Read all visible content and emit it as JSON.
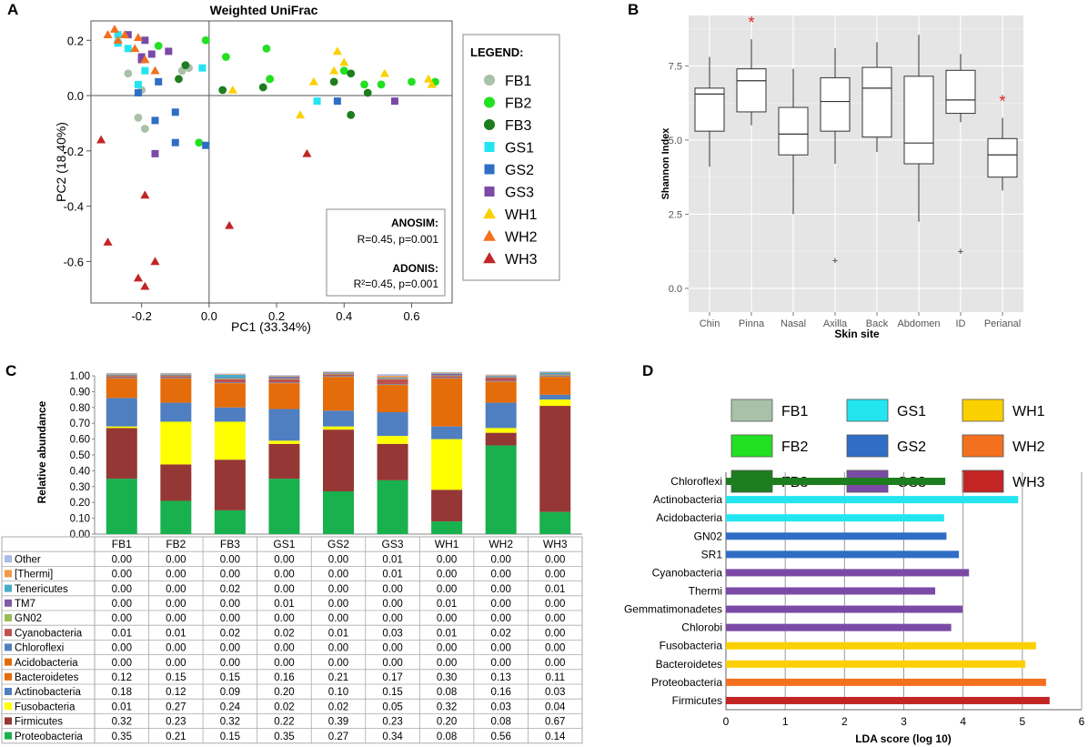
{
  "panel_labels": [
    "A",
    "B",
    "C",
    "D"
  ],
  "colors": {
    "FB1": "#a9c0a9",
    "FB2": "#22e022",
    "FB3": "#1e7d1e",
    "GS1": "#22e5f0",
    "GS2": "#2f6ec4",
    "GS3": "#7b4aa6",
    "WH1": "#fbd000",
    "WH2": "#f3701e",
    "WH3": "#c32424"
  },
  "panel_a": {
    "title": "Weighted UniFrac",
    "legend_title": "LEGEND:",
    "anosim_title": "ANOSIM:",
    "anosim_value": "R=0.45, p=0.001",
    "adonis_title": "ADONIS:",
    "adonis_value": "R²=0.45, p=0.001"
  },
  "panel_c": {
    "table_title": "Relative abundance",
    "legend_colors": {
      "Other": "#a9bde8",
      "[Thermi]": "#f2994a",
      "Tenericutes": "#4aacc6",
      "TM7": "#7d5ba6",
      "GN02": "#9bbb59",
      "Cyanobacteria": "#c0504d",
      "Chloroflexi": "#4f81bd",
      "Acidobacteria": "#e36c0a",
      "Bacteroidetes": "#e46c0a",
      "Actinobacteria": "#4f7fc0",
      "Fusobacteria": "#ffff00",
      "Firmicutes": "#953735",
      "Proteobacteria": "#19b04e"
    }
  },
  "chart_data": [
    {
      "type": "scatter",
      "title": "Weighted UniFrac",
      "xlabel": "PC1 (33.34%)",
      "ylabel": "PC2 (18.40%)",
      "xlim": [
        -0.35,
        0.72
      ],
      "ylim": [
        -0.75,
        0.27
      ],
      "xticks": [
        "-0.2",
        "0.0",
        "0.2",
        "0.4",
        "0.6"
      ],
      "yticks": [
        "0.2",
        "0.0",
        "-0.2",
        "-0.4",
        "-0.6"
      ],
      "legend": [
        "FB1",
        "FB2",
        "FB3",
        "GS1",
        "GS2",
        "GS3",
        "WH1",
        "WH2",
        "WH3"
      ],
      "series": [
        {
          "name": "FB1",
          "marker": "circle",
          "points": [
            [
              -0.24,
              0.08
            ],
            [
              -0.2,
              0.02
            ],
            [
              -0.08,
              0.09
            ],
            [
              -0.06,
              0.1
            ],
            [
              -0.21,
              -0.08
            ],
            [
              -0.19,
              -0.12
            ]
          ]
        },
        {
          "name": "FB2",
          "marker": "circle",
          "points": [
            [
              -0.15,
              0.18
            ],
            [
              -0.01,
              0.2
            ],
            [
              0.05,
              0.14
            ],
            [
              0.17,
              0.17
            ],
            [
              0.18,
              0.06
            ],
            [
              0.4,
              0.09
            ],
            [
              0.46,
              0.04
            ],
            [
              0.51,
              0.04
            ],
            [
              -0.03,
              -0.17
            ],
            [
              0.6,
              0.05
            ],
            [
              0.67,
              0.05
            ],
            [
              0.18,
              0.06
            ]
          ]
        },
        {
          "name": "FB3",
          "marker": "circle",
          "points": [
            [
              -0.07,
              0.11
            ],
            [
              -0.09,
              0.06
            ],
            [
              0.04,
              0.02
            ],
            [
              0.16,
              0.03
            ],
            [
              0.37,
              0.05
            ],
            [
              0.42,
              0.08
            ],
            [
              0.47,
              0.01
            ],
            [
              0.42,
              -0.07
            ]
          ]
        },
        {
          "name": "GS1",
          "marker": "square",
          "points": [
            [
              -0.27,
              0.22
            ],
            [
              -0.24,
              0.17
            ],
            [
              -0.27,
              0.19
            ],
            [
              -0.19,
              0.09
            ],
            [
              -0.02,
              0.1
            ],
            [
              -0.21,
              0.04
            ],
            [
              0.32,
              -0.02
            ]
          ]
        },
        {
          "name": "GS2",
          "marker": "square",
          "points": [
            [
              -0.21,
              0.01
            ],
            [
              -0.15,
              0.05
            ],
            [
              -0.16,
              -0.09
            ],
            [
              -0.1,
              -0.06
            ],
            [
              -0.1,
              -0.17
            ],
            [
              -0.01,
              -0.18
            ],
            [
              0.38,
              -0.02
            ]
          ]
        },
        {
          "name": "GS3",
          "marker": "square",
          "points": [
            [
              -0.24,
              0.22
            ],
            [
              -0.19,
              0.2
            ],
            [
              -0.17,
              0.15
            ],
            [
              -0.12,
              0.16
            ],
            [
              -0.2,
              0.13
            ],
            [
              -0.2,
              0.14
            ],
            [
              -0.16,
              -0.21
            ],
            [
              0.55,
              -0.02
            ]
          ]
        },
        {
          "name": "WH1",
          "marker": "triangle",
          "points": [
            [
              0.31,
              0.05
            ],
            [
              0.38,
              0.16
            ],
            [
              0.4,
              0.12
            ],
            [
              0.37,
              0.09
            ],
            [
              0.52,
              0.08
            ],
            [
              0.65,
              0.06
            ],
            [
              0.66,
              0.04
            ],
            [
              0.27,
              -0.07
            ],
            [
              0.07,
              0.02
            ]
          ]
        },
        {
          "name": "WH2",
          "marker": "triangle",
          "points": [
            [
              -0.3,
              0.22
            ],
            [
              -0.28,
              0.24
            ],
            [
              -0.27,
              0.2
            ],
            [
              -0.25,
              0.22
            ],
            [
              -0.22,
              0.17
            ],
            [
              -0.19,
              0.13
            ],
            [
              -0.16,
              0.09
            ],
            [
              -0.21,
              0.21
            ]
          ]
        },
        {
          "name": "WH3",
          "marker": "triangle",
          "points": [
            [
              -0.32,
              -0.16
            ],
            [
              -0.3,
              -0.53
            ],
            [
              -0.19,
              -0.36
            ],
            [
              -0.16,
              -0.6
            ],
            [
              -0.21,
              -0.66
            ],
            [
              -0.19,
              -0.69
            ],
            [
              0.06,
              -0.47
            ],
            [
              0.29,
              -0.21
            ]
          ]
        }
      ]
    },
    {
      "type": "box",
      "xlabel": "Skin site",
      "ylabel": "Shannon Index",
      "ylim": [
        -0.8,
        9.2
      ],
      "yticks": [
        "0.0",
        "2.5",
        "5.0",
        "7.5"
      ],
      "categories": [
        "Chin",
        "Pinna",
        "Nasal",
        "Axilla",
        "Back",
        "Abdomen",
        "ID",
        "Perianal"
      ],
      "boxes": [
        {
          "min": 4.1,
          "q1": 5.3,
          "median": 6.55,
          "q3": 6.75,
          "max": 7.8,
          "outliers": [],
          "star": false
        },
        {
          "min": 5.5,
          "q1": 5.95,
          "median": 7.0,
          "q3": 7.4,
          "max": 8.4,
          "outliers": [],
          "star": true
        },
        {
          "min": 2.5,
          "q1": 4.5,
          "median": 5.2,
          "q3": 6.1,
          "max": 7.4,
          "outliers": [],
          "star": false
        },
        {
          "min": 4.2,
          "q1": 5.3,
          "median": 6.3,
          "q3": 7.1,
          "max": 8.1,
          "outliers": [
            0.95
          ],
          "star": false
        },
        {
          "min": 4.6,
          "q1": 5.1,
          "median": 6.75,
          "q3": 7.45,
          "max": 8.3,
          "outliers": [],
          "star": false
        },
        {
          "min": 2.25,
          "q1": 4.2,
          "median": 4.9,
          "q3": 7.15,
          "max": 8.55,
          "outliers": [],
          "star": false
        },
        {
          "min": 5.6,
          "q1": 5.9,
          "median": 6.35,
          "q3": 7.35,
          "max": 7.9,
          "outliers": [
            1.25
          ],
          "star": false
        },
        {
          "min": 3.3,
          "q1": 3.75,
          "median": 4.5,
          "q3": 5.05,
          "max": 5.75,
          "outliers": [],
          "star": true
        }
      ]
    },
    {
      "type": "stacked_bar",
      "ylabel": "Relative abundance",
      "ylim": [
        0,
        1
      ],
      "yticks": [
        "0.00",
        "0.10",
        "0.20",
        "0.30",
        "0.40",
        "0.50",
        "0.60",
        "0.70",
        "0.80",
        "0.90",
        "1.00"
      ],
      "categories": [
        "FB1",
        "FB2",
        "FB3",
        "GS1",
        "GS2",
        "GS3",
        "WH1",
        "WH2",
        "WH3"
      ],
      "series": [
        {
          "name": "Other",
          "values": [
            "0.00",
            "0.00",
            "0.00",
            "0.00",
            "0.00",
            "0.01",
            "0.00",
            "0.00",
            "0.00"
          ]
        },
        {
          "name": "[Thermi]",
          "values": [
            "0.00",
            "0.00",
            "0.00",
            "0.00",
            "0.00",
            "0.01",
            "0.00",
            "0.00",
            "0.00"
          ]
        },
        {
          "name": "Tenericutes",
          "values": [
            "0.00",
            "0.00",
            "0.02",
            "0.00",
            "0.00",
            "0.00",
            "0.00",
            "0.00",
            "0.01"
          ]
        },
        {
          "name": "TM7",
          "values": [
            "0.00",
            "0.00",
            "0.00",
            "0.01",
            "0.00",
            "0.00",
            "0.01",
            "0.00",
            "0.00"
          ]
        },
        {
          "name": "GN02",
          "values": [
            "0.00",
            "0.00",
            "0.00",
            "0.00",
            "0.00",
            "0.00",
            "0.00",
            "0.00",
            "0.00"
          ]
        },
        {
          "name": "Cyanobacteria",
          "values": [
            "0.01",
            "0.01",
            "0.02",
            "0.02",
            "0.01",
            "0.03",
            "0.01",
            "0.02",
            "0.00"
          ]
        },
        {
          "name": "Chloroflexi",
          "values": [
            "0.00",
            "0.00",
            "0.00",
            "0.00",
            "0.00",
            "0.00",
            "0.00",
            "0.00",
            "0.00"
          ]
        },
        {
          "name": "Acidobacteria",
          "values": [
            "0.00",
            "0.00",
            "0.00",
            "0.00",
            "0.00",
            "0.00",
            "0.00",
            "0.00",
            "0.00"
          ]
        },
        {
          "name": "Bacteroidetes",
          "values": [
            "0.12",
            "0.15",
            "0.15",
            "0.16",
            "0.21",
            "0.17",
            "0.30",
            "0.13",
            "0.11"
          ]
        },
        {
          "name": "Actinobacteria",
          "values": [
            "0.18",
            "0.12",
            "0.09",
            "0.20",
            "0.10",
            "0.15",
            "0.08",
            "0.16",
            "0.03"
          ]
        },
        {
          "name": "Fusobacteria",
          "values": [
            "0.01",
            "0.27",
            "0.24",
            "0.02",
            "0.02",
            "0.05",
            "0.32",
            "0.03",
            "0.04"
          ]
        },
        {
          "name": "Firmicutes",
          "values": [
            "0.32",
            "0.23",
            "0.32",
            "0.22",
            "0.39",
            "0.23",
            "0.20",
            "0.08",
            "0.67"
          ]
        },
        {
          "name": "Proteobacteria",
          "values": [
            "0.35",
            "0.21",
            "0.15",
            "0.35",
            "0.27",
            "0.34",
            "0.08",
            "0.56",
            "0.14"
          ]
        }
      ]
    },
    {
      "type": "bar_horizontal",
      "xlabel": "LDA score (log 10)",
      "xlim": [
        0,
        6
      ],
      "xticks": [
        "0",
        "1",
        "2",
        "3",
        "4",
        "5",
        "6"
      ],
      "legend": [
        "FB1",
        "GS1",
        "WH1",
        "FB2",
        "GS2",
        "WH2",
        "FB3",
        "GS3",
        "WH3"
      ],
      "bars": [
        {
          "label": "Chloroflexi",
          "value": 3.7,
          "group": "FB3"
        },
        {
          "label": "Actinobacteria",
          "value": 4.93,
          "group": "GS1"
        },
        {
          "label": "Acidobacteria",
          "value": 3.68,
          "group": "GS1"
        },
        {
          "label": "GN02",
          "value": 3.72,
          "group": "GS2"
        },
        {
          "label": "SR1",
          "value": 3.93,
          "group": "GS2"
        },
        {
          "label": "Cyanobacteria",
          "value": 4.1,
          "group": "GS3"
        },
        {
          "label": "Thermi",
          "value": 3.53,
          "group": "GS3"
        },
        {
          "label": "Gemmatimonadetes",
          "value": 3.99,
          "group": "GS3"
        },
        {
          "label": "Chlorobi",
          "value": 3.8,
          "group": "GS3"
        },
        {
          "label": "Fusobacteria",
          "value": 5.23,
          "group": "WH1"
        },
        {
          "label": "Bacteroidetes",
          "value": 5.05,
          "group": "WH1"
        },
        {
          "label": "Proteobacteria",
          "value": 5.4,
          "group": "WH2"
        },
        {
          "label": "Firmicutes",
          "value": 5.46,
          "group": "WH3"
        }
      ]
    }
  ]
}
